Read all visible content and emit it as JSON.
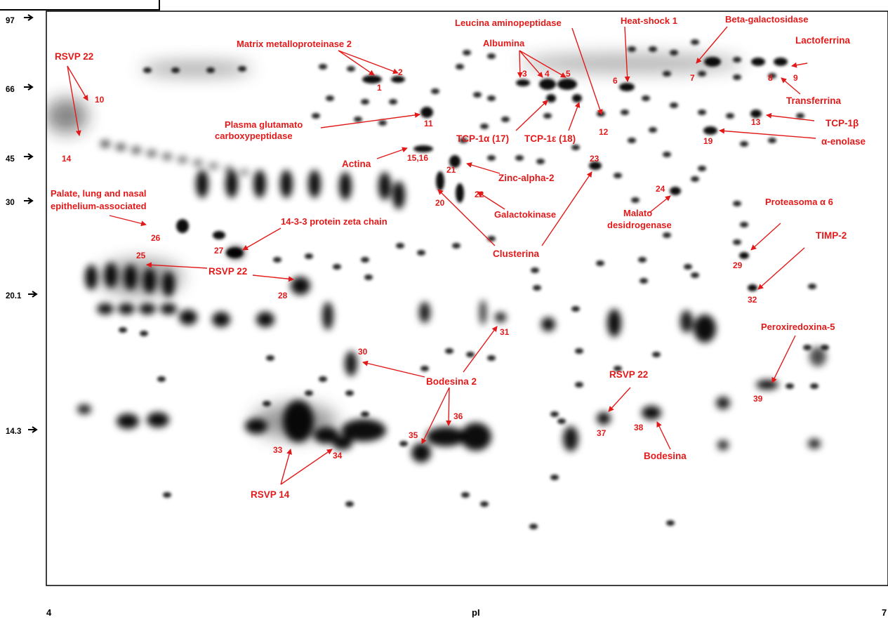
{
  "figure": {
    "y_axis_markers": [
      "97",
      "66",
      "45",
      "30",
      "20.1",
      "14.3"
    ],
    "x_axis": {
      "left": "4",
      "center": "pI",
      "right": "7"
    }
  },
  "annotations": {
    "rsvp22_a": "RSVP 22",
    "mmp2": "Matrix metalloproteinase 2",
    "albumina": "Albumina",
    "leucina": "Leucina aminopeptidase",
    "heatshock": "Heat-shock 1",
    "betagal": "Beta-galactosidase",
    "lactoferrina": "Lactoferrina",
    "transferrina": "Transferrina",
    "tcp1b": "TCP-1β",
    "enolase": "α-enolase",
    "plasma1": "Plasma glutamato",
    "plasma2": "carboxypeptidase",
    "tcp1a": "TCP-1α (17)",
    "tcp1e": "TCP-1ε (18)",
    "actina": "Actina",
    "zinc": "Zinc-alpha-2",
    "galacto": "Galactokinase",
    "malato1": "Malato",
    "malato2": "desidrogenase",
    "palate1": "Palate, lung and nasal",
    "palate2": "epithelium-associated",
    "zeta": "14-3-3 protein zeta chain",
    "clusterina": "Clusterina",
    "proteasoma": "Proteasoma α 6",
    "timp2": "TIMP-2",
    "rsvp22_b": "RSVP 22",
    "perox": "Peroxiredoxina-5",
    "bodesina2": "Bodesina 2",
    "rsvp22_c": "RSVP 22",
    "bodesina": "Bodesina",
    "rsvp14": "RSVP 14"
  },
  "spot_numbers": [
    "1",
    "2",
    "3",
    "4",
    "5",
    "6",
    "7",
    "8",
    "9",
    "10",
    "11",
    "12",
    "13",
    "14",
    "15,16",
    "19",
    "20",
    "21",
    "22",
    "23",
    "24",
    "25",
    "26",
    "27",
    "28",
    "29",
    "30",
    "31",
    "32",
    "33",
    "34",
    "35",
    "36",
    "37",
    "38",
    "39"
  ]
}
